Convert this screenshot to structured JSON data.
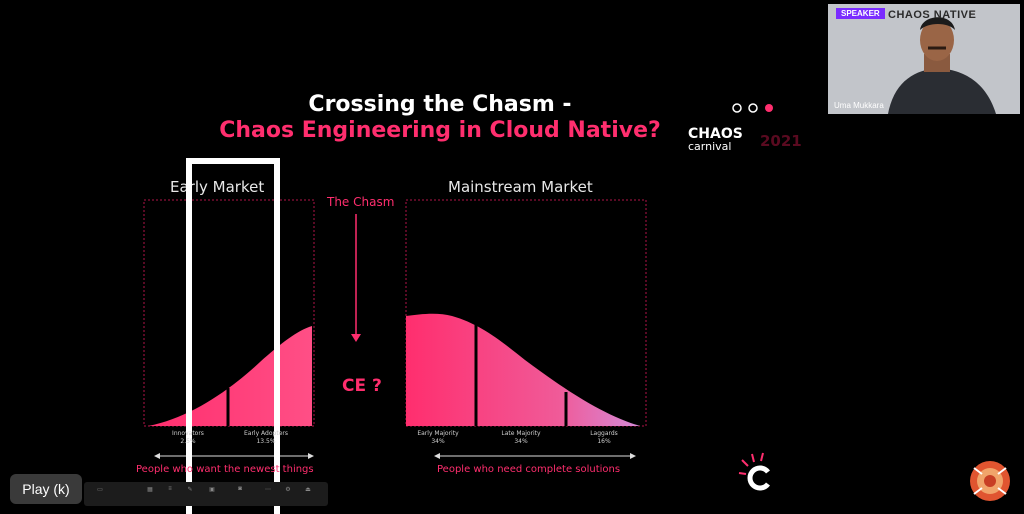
{
  "slide": {
    "title_line1": "Crossing the Chasm -",
    "title_line2": "Chaos Engineering in Cloud Native?",
    "early_market": "Early Market",
    "mainstream_market": "Mainstream Market",
    "chasm_label": "The Chasm",
    "ce_label": "CE ?",
    "segments": [
      {
        "name": "Innovators",
        "pct": "2.5%"
      },
      {
        "name": "Early Adopters",
        "pct": "13.5%"
      },
      {
        "name": "Early Majority",
        "pct": "34%"
      },
      {
        "name": "Late Majority",
        "pct": "34%"
      },
      {
        "name": "Laggards",
        "pct": "16%"
      }
    ],
    "left_caption": "People who want the newest things",
    "right_caption": "People who need complete solutions",
    "logo": {
      "line1": "CHAOS",
      "line2": "carnival",
      "year": "2021"
    }
  },
  "speaker": {
    "tag": "SPEAKER",
    "brand": "CHAOS NATIVE",
    "name": "Uma Mukkara"
  },
  "player": {
    "play_label": "Play (k)"
  },
  "colors": {
    "accent": "#ff2e6e",
    "background": "#000000"
  }
}
